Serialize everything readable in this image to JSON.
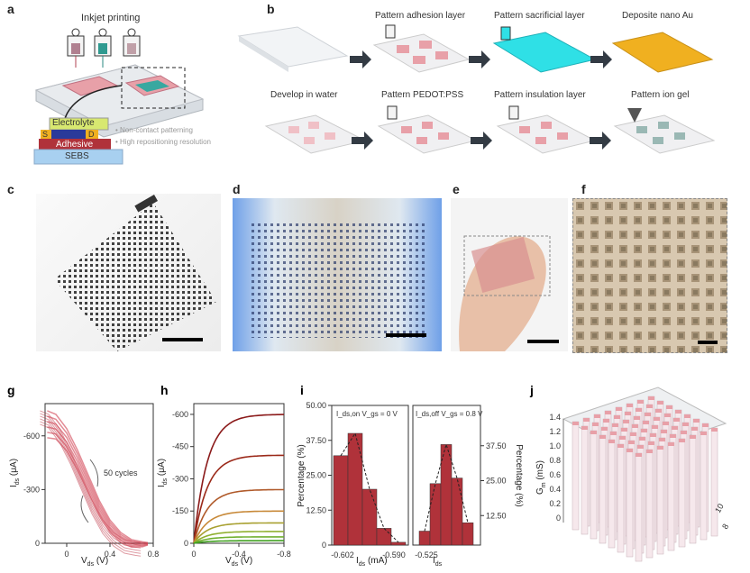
{
  "panels": {
    "a": {
      "label": "a",
      "title": "Inkjet printing",
      "layers": [
        "Electrolyte",
        "S",
        "D",
        "Adhesive",
        "SEBS"
      ],
      "bullets": [
        "• Non-contact patterning",
        "• High repositioning resolution"
      ]
    },
    "b": {
      "label": "b",
      "steps": [
        "Pattern adhesion layer",
        "Pattern sacrificial layer",
        "Deposite nano Au",
        "Develop in water",
        "Pattern PEDOT:PSS",
        "Pattern insulation layer",
        "Pattern ion gel"
      ]
    },
    "c": {
      "label": "c"
    },
    "d": {
      "label": "d"
    },
    "e": {
      "label": "e"
    },
    "f": {
      "label": "f"
    }
  },
  "colors": {
    "pink": "#e8a0a8",
    "cyan": "#2fe0e6",
    "gold": "#f0b020",
    "arrow": "#333b44",
    "red": "#b0323a"
  },
  "chart_data": [
    {
      "panel": "g",
      "type": "line",
      "xlabel": "V",
      "xlabel_sub": "ds",
      "xlabel_unit": "(V)",
      "ylabel": "I",
      "ylabel_sub": "ds",
      "ylabel_unit": "(μA)",
      "xticks": [
        "0",
        "0.4",
        "0.8"
      ],
      "yticks": [
        "0",
        "-300",
        "-600"
      ],
      "annotation": "50 cycles",
      "xlim": [
        -0.2,
        0.8
      ],
      "ylim": [
        0,
        -780
      ],
      "series": [
        {
          "x": [
            -0.18,
            -0.1,
            0.0,
            0.1,
            0.2,
            0.3,
            0.4,
            0.5,
            0.6,
            0.7,
            0.75
          ],
          "y": [
            -740,
            -720,
            -640,
            -520,
            -380,
            -240,
            -130,
            -60,
            -20,
            -8,
            -4
          ]
        }
      ]
    },
    {
      "panel": "h",
      "type": "line",
      "xlabel": "V",
      "xlabel_sub": "ds",
      "xlabel_unit": "(V)",
      "ylabel": "I",
      "ylabel_sub": "ds",
      "ylabel_unit": "(μA)",
      "xticks": [
        "0",
        "-0.4",
        "-0.8"
      ],
      "yticks": [
        "0",
        "-150",
        "-300",
        "-450",
        "-600"
      ],
      "xlim": [
        0,
        -0.8
      ],
      "ylim": [
        0,
        -650
      ],
      "series": [
        {
          "sat": -600,
          "color": "#8b1a1a"
        },
        {
          "sat": -410,
          "color": "#9b2a1a"
        },
        {
          "sat": -250,
          "color": "#b05a2a"
        },
        {
          "sat": -150,
          "color": "#c88a3a"
        },
        {
          "sat": -95,
          "color": "#a8a030"
        },
        {
          "sat": -55,
          "color": "#90b030"
        },
        {
          "sat": -30,
          "color": "#70b030"
        },
        {
          "sat": -12,
          "color": "#40a020"
        }
      ]
    },
    {
      "panel": "i",
      "type": "bar",
      "ylabel": "Percentage (%)",
      "ylabel2": "Percentage (%)",
      "xlabel": "I",
      "xlabel_sub": "ds",
      "xlabel_unit": "(mA)",
      "ylim": [
        0,
        50
      ],
      "yticks": [
        "0",
        "12.50",
        "25.00",
        "37.50",
        "50.00"
      ],
      "y2ticks": [
        "12.50",
        "25.00",
        "37.50"
      ],
      "left": {
        "condition": "I_ds,on  V_gs = 0 V",
        "xticks": [
          "-0.602",
          "-0.590"
        ],
        "values": [
          32,
          40,
          20,
          6,
          1
        ]
      },
      "right": {
        "condition": "I_ds,off  V_gs = 0.8 V",
        "xticks": [
          "-0.525"
        ],
        "values": [
          5,
          22,
          36,
          24,
          8
        ]
      }
    },
    {
      "panel": "j",
      "type": "bar3d",
      "zlabel": "G",
      "zlabel_sub": "m",
      "zlabel_unit": "(mS)",
      "zticks": [
        "0",
        "0.2",
        "0.4",
        "0.6",
        "0.8",
        "1.0",
        "1.2",
        "1.4"
      ],
      "xticks": [
        "10",
        "8"
      ]
    }
  ]
}
